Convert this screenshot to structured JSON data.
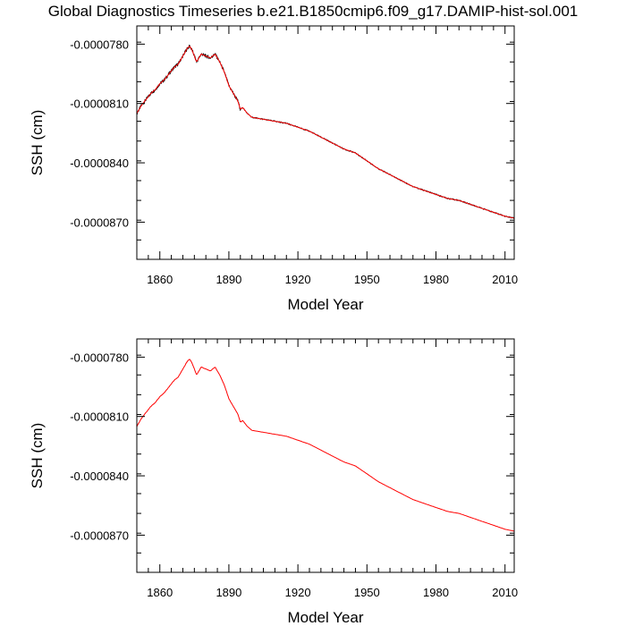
{
  "title": "Global Diagnostics Timeseries b.e21.B1850cmip6.f09_g17.DAMIP-hist-sol.001",
  "colors": {
    "raw": "#000000",
    "smoothed": "#ff0000",
    "axis": "#000000"
  },
  "chart_data": [
    {
      "type": "line",
      "xlabel": "Model Year",
      "ylabel": "SSH (cm)",
      "xlim": [
        1850,
        2014
      ],
      "ylim": [
        -8.888e-05,
        -7.708e-05
      ],
      "xticks": [
        1860,
        1890,
        1920,
        1950,
        1980,
        2010
      ],
      "yticks": [
        -7.8e-05,
        -8.1e-05,
        -8.4e-05,
        -8.7e-05
      ],
      "ytick_labels": [
        "-0.0000780",
        "-0.0000810",
        "-0.0000840",
        "-0.0000870"
      ],
      "series": [
        {
          "style": "raw-noisy",
          "color": "#000000",
          "x": [
            1850,
            1852,
            1854,
            1856,
            1858,
            1860,
            1862,
            1864,
            1866,
            1868,
            1870,
            1872,
            1873,
            1874,
            1876,
            1878,
            1880,
            1882,
            1884,
            1886,
            1888,
            1890,
            1892,
            1894,
            1895,
            1896,
            1898,
            1900,
            1905,
            1910,
            1915,
            1920,
            1925,
            1930,
            1935,
            1940,
            1945,
            1950,
            1955,
            1960,
            1965,
            1970,
            1975,
            1980,
            1985,
            1990,
            1995,
            2000,
            2005,
            2010,
            2014
          ],
          "y": [
            -8.15e-05,
            -8.11e-05,
            -8.08e-05,
            -8.05e-05,
            -8.03e-05,
            -8e-05,
            -7.98e-05,
            -7.95e-05,
            -7.92e-05,
            -7.9e-05,
            -7.86e-05,
            -7.82e-05,
            -7.81e-05,
            -7.83e-05,
            -7.89e-05,
            -7.85e-05,
            -7.86e-05,
            -7.87e-05,
            -7.85e-05,
            -7.89e-05,
            -7.94e-05,
            -8.01e-05,
            -8.05e-05,
            -8.09e-05,
            -8.13e-05,
            -8.12e-05,
            -8.15e-05,
            -8.17e-05,
            -8.18e-05,
            -8.19e-05,
            -8.2e-05,
            -8.22e-05,
            -8.24e-05,
            -8.27e-05,
            -8.3e-05,
            -8.33e-05,
            -8.35e-05,
            -8.39e-05,
            -8.43e-05,
            -8.46e-05,
            -8.49e-05,
            -8.52e-05,
            -8.54e-05,
            -8.56e-05,
            -8.58e-05,
            -8.59e-05,
            -8.61e-05,
            -8.63e-05,
            -8.65e-05,
            -8.67e-05,
            -8.68e-05
          ]
        },
        {
          "style": "smoothed",
          "color": "#ff0000",
          "x": [
            1850,
            1852,
            1854,
            1856,
            1858,
            1860,
            1862,
            1864,
            1866,
            1868,
            1870,
            1872,
            1873,
            1874,
            1876,
            1878,
            1880,
            1882,
            1884,
            1886,
            1888,
            1890,
            1892,
            1894,
            1895,
            1896,
            1898,
            1900,
            1905,
            1910,
            1915,
            1920,
            1925,
            1930,
            1935,
            1940,
            1945,
            1950,
            1955,
            1960,
            1965,
            1970,
            1975,
            1980,
            1985,
            1990,
            1995,
            2000,
            2005,
            2010,
            2014
          ],
          "y": [
            -8.15e-05,
            -8.11e-05,
            -8.08e-05,
            -8.05e-05,
            -8.03e-05,
            -8e-05,
            -7.98e-05,
            -7.95e-05,
            -7.92e-05,
            -7.9e-05,
            -7.86e-05,
            -7.82e-05,
            -7.81e-05,
            -7.83e-05,
            -7.89e-05,
            -7.85e-05,
            -7.86e-05,
            -7.87e-05,
            -7.85e-05,
            -7.89e-05,
            -7.94e-05,
            -8.01e-05,
            -8.05e-05,
            -8.09e-05,
            -8.13e-05,
            -8.12e-05,
            -8.15e-05,
            -8.17e-05,
            -8.18e-05,
            -8.19e-05,
            -8.2e-05,
            -8.22e-05,
            -8.24e-05,
            -8.27e-05,
            -8.3e-05,
            -8.33e-05,
            -8.35e-05,
            -8.39e-05,
            -8.43e-05,
            -8.46e-05,
            -8.49e-05,
            -8.52e-05,
            -8.54e-05,
            -8.56e-05,
            -8.58e-05,
            -8.59e-05,
            -8.61e-05,
            -8.63e-05,
            -8.65e-05,
            -8.67e-05,
            -8.68e-05
          ]
        }
      ]
    },
    {
      "type": "line",
      "xlabel": "Model Year",
      "ylabel": "SSH (cm)",
      "xlim": [
        1850,
        2014
      ],
      "ylim": [
        -8.888e-05,
        -7.708e-05
      ],
      "xticks": [
        1860,
        1890,
        1920,
        1950,
        1980,
        2010
      ],
      "yticks": [
        -7.8e-05,
        -8.1e-05,
        -8.4e-05,
        -8.7e-05
      ],
      "ytick_labels": [
        "-0.0000780",
        "-0.0000810",
        "-0.0000840",
        "-0.0000870"
      ],
      "series": [
        {
          "style": "smoothed",
          "color": "#ff0000",
          "x": [
            1850,
            1852,
            1854,
            1856,
            1858,
            1860,
            1862,
            1864,
            1866,
            1868,
            1870,
            1872,
            1873,
            1874,
            1876,
            1878,
            1880,
            1882,
            1884,
            1886,
            1888,
            1890,
            1892,
            1894,
            1895,
            1896,
            1898,
            1900,
            1905,
            1910,
            1915,
            1920,
            1925,
            1930,
            1935,
            1940,
            1945,
            1950,
            1955,
            1960,
            1965,
            1970,
            1975,
            1980,
            1985,
            1990,
            1995,
            2000,
            2005,
            2010,
            2014
          ],
          "y": [
            -8.15e-05,
            -8.11e-05,
            -8.08e-05,
            -8.05e-05,
            -8.03e-05,
            -8e-05,
            -7.98e-05,
            -7.95e-05,
            -7.92e-05,
            -7.9e-05,
            -7.86e-05,
            -7.82e-05,
            -7.81e-05,
            -7.83e-05,
            -7.89e-05,
            -7.85e-05,
            -7.86e-05,
            -7.87e-05,
            -7.85e-05,
            -7.89e-05,
            -7.94e-05,
            -8.01e-05,
            -8.05e-05,
            -8.09e-05,
            -8.13e-05,
            -8.12e-05,
            -8.15e-05,
            -8.17e-05,
            -8.18e-05,
            -8.19e-05,
            -8.2e-05,
            -8.22e-05,
            -8.24e-05,
            -8.27e-05,
            -8.3e-05,
            -8.33e-05,
            -8.35e-05,
            -8.39e-05,
            -8.43e-05,
            -8.46e-05,
            -8.49e-05,
            -8.52e-05,
            -8.54e-05,
            -8.56e-05,
            -8.58e-05,
            -8.59e-05,
            -8.61e-05,
            -8.63e-05,
            -8.65e-05,
            -8.67e-05,
            -8.68e-05
          ]
        }
      ]
    }
  ]
}
